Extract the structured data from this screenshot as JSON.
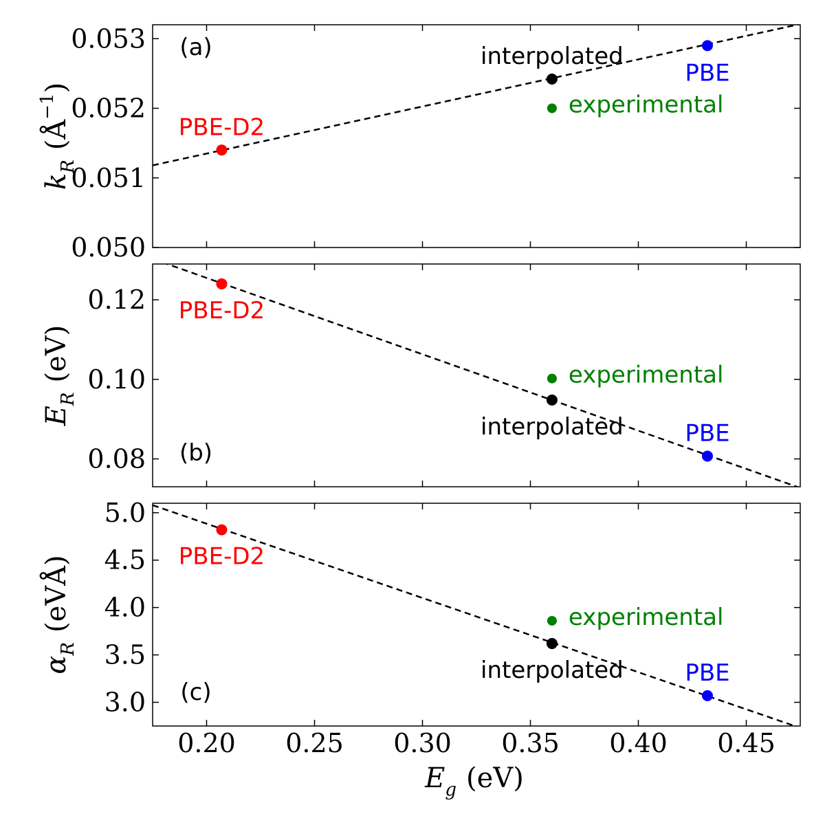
{
  "chart_data": {
    "type": "scatter",
    "x_axis": {
      "symbol": "E",
      "subscript": "g",
      "unit": "(eV)",
      "lim": [
        0.175,
        0.475
      ],
      "ticks": [
        0.2,
        0.25,
        0.3,
        0.35,
        0.4,
        0.45
      ],
      "tick_labels": [
        "0.20",
        "0.25",
        "0.30",
        "0.35",
        "0.40",
        "0.45"
      ]
    },
    "colors": {
      "PBE-D2": "#ff0000",
      "interpolated": "#000000",
      "experimental": "#008000",
      "PBE": "#0000ff"
    },
    "panels": [
      {
        "id": "a",
        "panel_label": "(a)",
        "ylabel": {
          "symbol": "k",
          "subscript": "R",
          "unit_open": "(Å",
          "superscript": "−1",
          "unit_close": ")"
        },
        "ylim": [
          0.05,
          0.0532
        ],
        "yticks": [
          0.05,
          0.051,
          0.052,
          0.053
        ],
        "ytick_labels": [
          "0.050",
          "0.051",
          "0.052",
          "0.053"
        ],
        "fit_line": {
          "x": [
            0.175,
            0.475
          ],
          "y": [
            0.05118,
            0.05321
          ]
        },
        "points": [
          {
            "name": "PBE-D2",
            "label": "PBE-D2",
            "x": 0.207,
            "y": 0.0514,
            "label_pos": "above"
          },
          {
            "name": "interpolated",
            "label": "interpolated",
            "x": 0.36,
            "y": 0.05242,
            "label_pos": "above"
          },
          {
            "name": "experimental",
            "label": "experimental",
            "x": 0.36,
            "y": 0.052,
            "label_pos": "right"
          },
          {
            "name": "PBE",
            "label": "PBE",
            "x": 0.432,
            "y": 0.0529,
            "label_pos": "below"
          }
        ]
      },
      {
        "id": "b",
        "panel_label": "(b)",
        "ylabel": {
          "symbol": "E",
          "subscript": "R",
          "unit": "(eV)"
        },
        "ylim": [
          0.073,
          0.129
        ],
        "yticks": [
          0.08,
          0.1,
          0.12
        ],
        "ytick_labels": [
          "0.08",
          "0.10",
          "0.12"
        ],
        "fit_line": {
          "x": [
            0.175,
            0.475
          ],
          "y": [
            0.1303,
            0.0727
          ]
        },
        "points": [
          {
            "name": "PBE-D2",
            "label": "PBE-D2",
            "x": 0.207,
            "y": 0.124,
            "label_pos": "below"
          },
          {
            "name": "interpolated",
            "label": "interpolated",
            "x": 0.36,
            "y": 0.0948,
            "label_pos": "below"
          },
          {
            "name": "experimental",
            "label": "experimental",
            "x": 0.36,
            "y": 0.1002,
            "label_pos": "right"
          },
          {
            "name": "PBE",
            "label": "PBE",
            "x": 0.432,
            "y": 0.0807,
            "label_pos": "above"
          }
        ]
      },
      {
        "id": "c",
        "panel_label": "(c)",
        "ylabel": {
          "symbol": "α",
          "subscript": "R",
          "unit": "(eVÅ)"
        },
        "ylim": [
          2.75,
          5.1
        ],
        "yticks": [
          3.0,
          3.5,
          4.0,
          4.5,
          5.0
        ],
        "ytick_labels": [
          "3.0",
          "3.5",
          "4.0",
          "4.5",
          "5.0"
        ],
        "fit_line": {
          "x": [
            0.175,
            0.475
          ],
          "y": [
            5.08,
            2.73
          ]
        },
        "points": [
          {
            "name": "PBE-D2",
            "label": "PBE-D2",
            "x": 0.207,
            "y": 4.82,
            "label_pos": "below"
          },
          {
            "name": "interpolated",
            "label": "interpolated",
            "x": 0.36,
            "y": 3.62,
            "label_pos": "below"
          },
          {
            "name": "experimental",
            "label": "experimental",
            "x": 0.36,
            "y": 3.86,
            "label_pos": "right"
          },
          {
            "name": "PBE",
            "label": "PBE",
            "x": 0.432,
            "y": 3.07,
            "label_pos": "above"
          }
        ]
      }
    ]
  }
}
